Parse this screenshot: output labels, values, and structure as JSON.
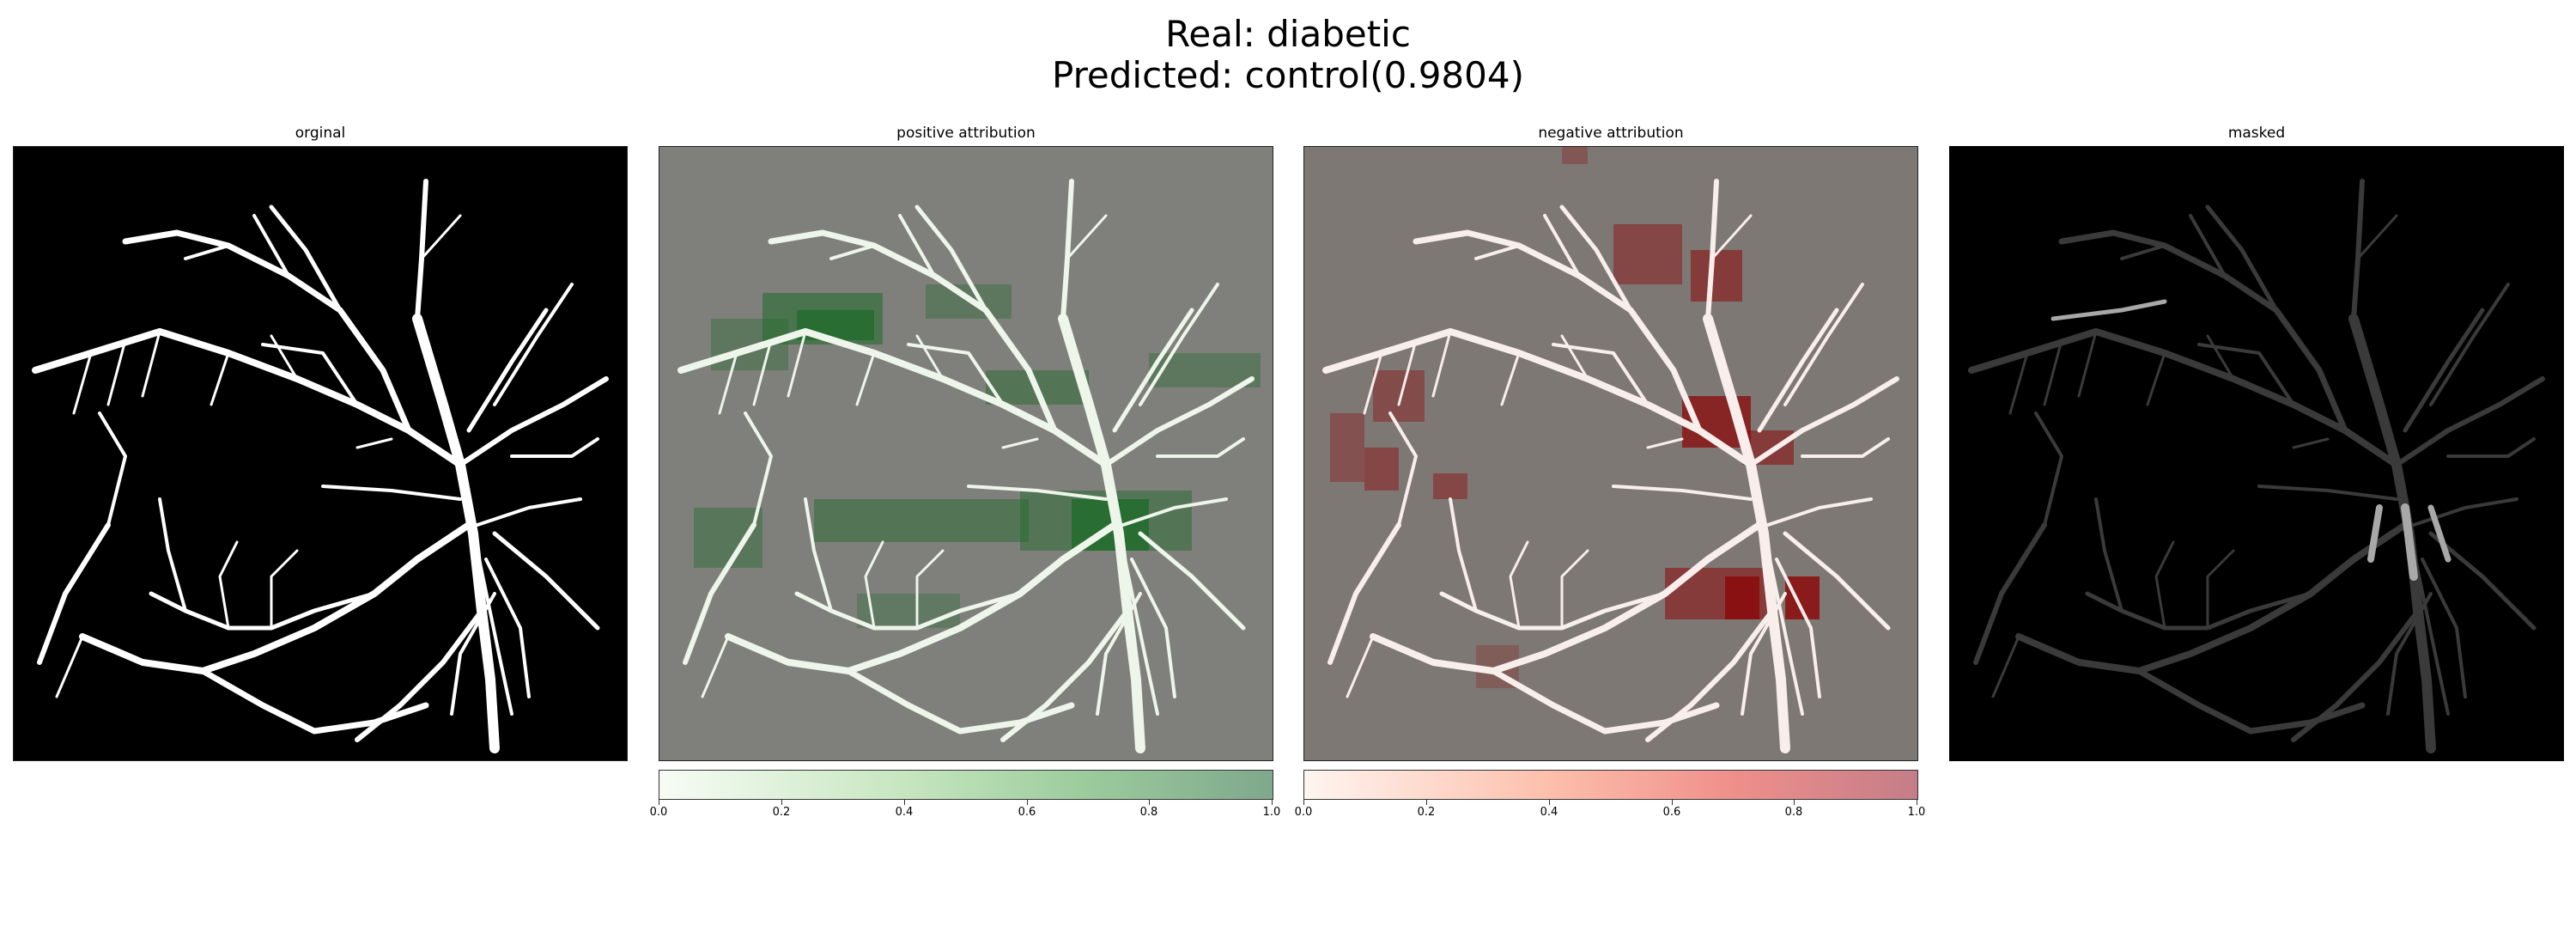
{
  "figure": {
    "suptitle_line1": "Real: diabetic",
    "suptitle_line2": "Predicted: control(0.9804)"
  },
  "panels": [
    {
      "title": "orginal"
    },
    {
      "title": "positive attribution"
    },
    {
      "title": "negative attribution"
    },
    {
      "title": "masked"
    }
  ],
  "colorbars": {
    "positive": {
      "ticks": [
        "0.0",
        "0.2",
        "0.4",
        "0.6",
        "0.8",
        "1.0"
      ],
      "color_low": "#f7fcf5",
      "color_high": "#7fa88c",
      "overlay_color": "#1f6b2a"
    },
    "negative": {
      "ticks": [
        "0.0",
        "0.2",
        "0.4",
        "0.6",
        "0.8",
        "1.0"
      ],
      "color_low": "#fff5f0",
      "color_high": "#c47d88",
      "overlay_color": "#8b0a0a"
    }
  },
  "colors": {
    "background_original": "#000000",
    "background_attribution": "#7f7f7b",
    "background_negative": "#7e7875",
    "vessel": "#ffffff"
  }
}
